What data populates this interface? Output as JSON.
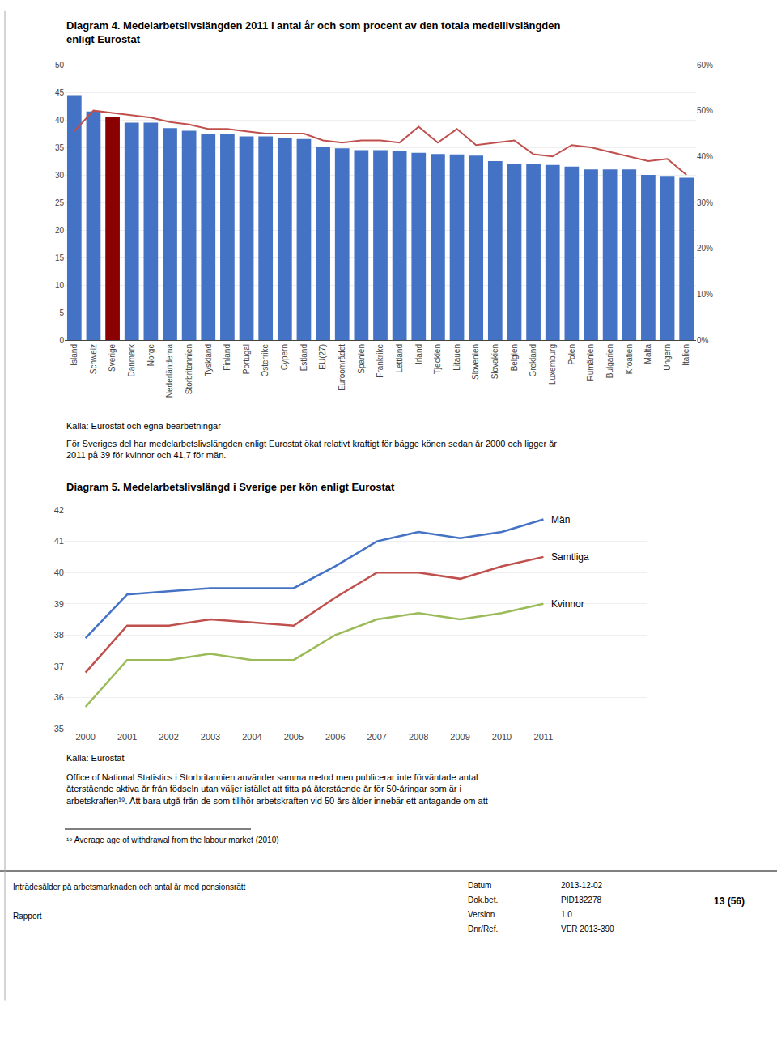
{
  "chart_data": [
    {
      "type": "bar",
      "title": "Diagram 4. Medelarbetslivslängden 2011 i antal år och som procent av den totala medellivslängden\nenligt Eurostat",
      "categories": [
        "Island",
        "Schweiz",
        "Sverige",
        "Danmark",
        "Norge",
        "Nederländerna",
        "Storbritannien",
        "Tyskland",
        "Finland",
        "Portugal",
        "Österrike",
        "Cypern",
        "Estland",
        "EU(27)",
        "Euroområdet",
        "Spanien",
        "Frankrike",
        "Lettland",
        "Irland",
        "Tjeckien",
        "Litauen",
        "Slovenien",
        "Slovakien",
        "Belgien",
        "Grekland",
        "Luxemburg",
        "Polen",
        "Rumänien",
        "Bulgarien",
        "Kroatien",
        "Malta",
        "Ungern",
        "Italien"
      ],
      "series": [
        {
          "type": "bar",
          "colors": [
            "#4472C4",
            "#4472C4",
            "#8B0000",
            "#4472C4",
            "#4472C4",
            "#4472C4",
            "#4472C4",
            "#4472C4",
            "#4472C4",
            "#4472C4",
            "#4472C4",
            "#4472C4",
            "#4472C4",
            "#4472C4",
            "#4472C4",
            "#4472C4",
            "#4472C4",
            "#4472C4",
            "#4472C4",
            "#4472C4",
            "#4472C4",
            "#4472C4",
            "#4472C4",
            "#4472C4",
            "#4472C4",
            "#4472C4",
            "#4472C4",
            "#4472C4",
            "#4472C4",
            "#4472C4",
            "#4472C4",
            "#4472C4",
            "#4472C4"
          ],
          "values": [
            44.5,
            41.5,
            40.5,
            39.5,
            39.5,
            38.5,
            38.0,
            37.5,
            37.5,
            37.0,
            37.0,
            36.7,
            36.5,
            35.0,
            34.8,
            34.5,
            34.5,
            34.3,
            34.0,
            33.8,
            33.7,
            33.5,
            32.5,
            32.0,
            32.0,
            31.8,
            31.5,
            31.0,
            31.0,
            31.0,
            30.0,
            29.8,
            29.5
          ]
        },
        {
          "type": "line",
          "color": "#C0504D",
          "axis": "y2",
          "values": [
            45.5,
            50.0,
            49.5,
            49.0,
            48.5,
            47.5,
            47.0,
            46.0,
            46.0,
            45.5,
            45.0,
            45.0,
            45.0,
            43.5,
            43.0,
            43.5,
            43.5,
            43.0,
            46.5,
            43.0,
            46.0,
            42.5,
            43.0,
            43.5,
            40.5,
            40.0,
            42.5,
            42.0,
            41.0,
            40.0,
            39.0,
            39.5,
            36.0
          ]
        }
      ],
      "ylim": [
        0,
        50
      ],
      "yticks": [
        0,
        5,
        10,
        15,
        20,
        25,
        30,
        35,
        40,
        45,
        50
      ],
      "y2lim": [
        0,
        60
      ],
      "y2ticks": [
        {
          "value": 0,
          "label": "0%"
        },
        {
          "value": 10,
          "label": "10%"
        },
        {
          "value": 20,
          "label": "20%"
        },
        {
          "value": 30,
          "label": "30%"
        },
        {
          "value": 40,
          "label": "40%"
        },
        {
          "value": 50,
          "label": "50%"
        },
        {
          "value": 60,
          "label": "60%"
        }
      ],
      "grid": true,
      "annotations": [
        "Källa: Eurostat och egna bearbetningar",
        "För Sveriges del har medelarbetslivslängden enligt Eurostat ökat relativt kraftigt för bägge könen sedan år 2000 och ligger år 2011 på 39 för kvinnor och 41,7 för män."
      ]
    },
    {
      "type": "line",
      "title": "Diagram 5. Medelarbetslivslängd i Sverige per kön enligt Eurostat",
      "x": [
        2000,
        2001,
        2002,
        2003,
        2004,
        2005,
        2006,
        2007,
        2008,
        2009,
        2010,
        2011
      ],
      "series": [
        {
          "name": "Män",
          "color": "#4472C4",
          "values": [
            37.9,
            39.3,
            39.4,
            39.5,
            39.5,
            39.5,
            40.2,
            41.0,
            41.3,
            41.1,
            41.3,
            41.7
          ]
        },
        {
          "name": "Samtliga",
          "color": "#C0504D",
          "values": [
            36.8,
            38.3,
            38.3,
            38.5,
            38.4,
            38.3,
            39.2,
            40.0,
            40.0,
            39.8,
            40.2,
            40.5
          ]
        },
        {
          "name": "Kvinnor",
          "color": "#9BBB59",
          "values": [
            35.7,
            37.2,
            37.2,
            37.4,
            37.2,
            37.2,
            38.0,
            38.5,
            38.7,
            38.5,
            38.7,
            39.0
          ]
        }
      ],
      "xlim": [
        1999.5,
        2013.5
      ],
      "xticks": [
        2000,
        2001,
        2002,
        2003,
        2004,
        2005,
        2006,
        2007,
        2008,
        2009,
        2010,
        2011
      ],
      "ylim": [
        35,
        42
      ],
      "yticks": [
        35,
        36,
        37,
        38,
        39,
        40,
        41,
        42
      ],
      "grid": true,
      "annotations": [
        "Källa: Eurostat",
        "Office of National Statistics i Storbritannien använder samma metod men publicerar inte förväntade antal\nåterstående aktiva år från födseln utan väljer istället att titta på återstående år för 50-åringar som är i\narbetskraften¹⁹. Att bara utgå från de som tillhör arbetskraften vid 50 års ålder innebär ett antagande om att",
        "¹⁹ Average age of withdrawal from the labour market (2010)",
        "Inträdesålder på arbetsmarknaden och antal år med pensionsrätt",
        "Rapport",
        "Datum",
        "2013-12-02",
        "Dok.bet.",
        "PID132278",
        "Version",
        "1.0",
        "Dnr/Ref.",
        "VER 2013-390",
        "13 (56)"
      ]
    }
  ]
}
